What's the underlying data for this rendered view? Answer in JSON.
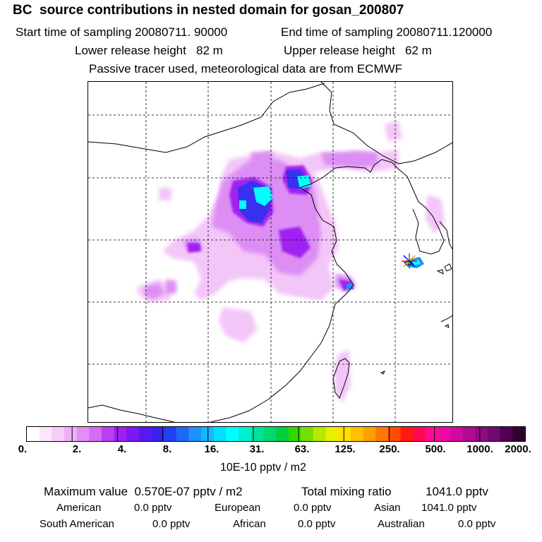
{
  "header": {
    "title": "BC  source contributions in nested domain for gosan_200807",
    "start_time": "Start time of sampling 20080711. 90000",
    "end_time": "End time of sampling 20080711.120000",
    "lower_release": "Lower release height   82 m",
    "upper_release": "Upper release height   62 m",
    "tracer_info": "Passive tracer used, meteorological data are from ECMWF"
  },
  "colorbar": {
    "ticks": [
      "0.",
      "2.",
      "4.",
      "8.",
      "16.",
      "31.",
      "63.",
      "125.",
      "250.",
      "500.",
      "1000.",
      "2000."
    ],
    "units": "10E-10 pptv / m2",
    "colors": [
      "#ffffff",
      "#fbe6fc",
      "#f6ccfa",
      "#f0b0f7",
      "#e28ef5",
      "#d36df3",
      "#bb40f1",
      "#a020f0",
      "#7b1af0",
      "#5818f0",
      "#3a20f2",
      "#1f40f5",
      "#1e68f8",
      "#1e90ff",
      "#10b8ff",
      "#00dfff",
      "#00ffff",
      "#00f0cf",
      "#00e39f",
      "#00d870",
      "#00cd40",
      "#30d800",
      "#78e000",
      "#b8ea00",
      "#e8f000",
      "#ffe000",
      "#ffc000",
      "#ffa000",
      "#ff7800",
      "#ff4a00",
      "#ff1a10",
      "#ff0a50",
      "#ff0a90",
      "#f00aa0",
      "#d00aa0",
      "#b00a90",
      "#900a80",
      "#700a70",
      "#500050",
      "#300030"
    ]
  },
  "stats": {
    "max_label": "Maximum value  0.570E-07 pptv / m2",
    "total_label": "Total mixing ratio",
    "total_value": "1041.0 pptv",
    "american_label": "American",
    "american_value": "0.0 pptv",
    "european_label": "European",
    "european_value": "0.0 pptv",
    "asian_label": "Asian",
    "asian_value": "1041.0 pptv",
    "south_american_label": "South American",
    "south_american_value": "0.0 pptv",
    "african_label": "African",
    "african_value": "0.0 pptv",
    "australian_label": "Australian",
    "australian_value": "0.0 pptv"
  }
}
